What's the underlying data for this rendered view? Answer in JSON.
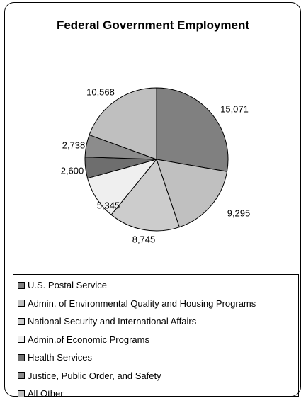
{
  "chart_data": {
    "type": "pie",
    "title": "Federal Government Employment",
    "categories": [
      "U.S. Postal Service",
      "Admin. of Environmental Quality and Housing Programs",
      "National Security and International Affairs",
      "Admin.of Economic Programs",
      "Health Services",
      "Justice, Public Order, and Safety",
      "All Other"
    ],
    "values": [
      15071,
      9295,
      8745,
      5345,
      2600,
      2738,
      10568
    ],
    "value_labels": [
      "15,071",
      "9,295",
      "8,745",
      "5,345",
      "2,600",
      "2,738",
      "10,568"
    ],
    "colors": [
      "#808080",
      "#c0c0c0",
      "#cccccc",
      "#efefef",
      "#6e6e6e",
      "#8c8c8c",
      "#bfbfbf"
    ],
    "legend_placement": "bottom",
    "start_angle": "12 o'clock, clockwise"
  }
}
